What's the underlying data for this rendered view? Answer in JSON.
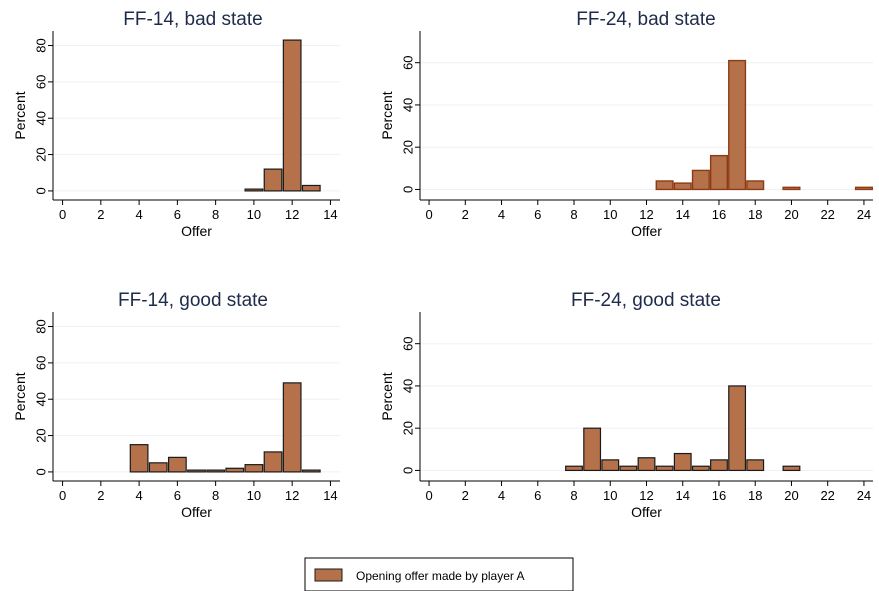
{
  "legend": {
    "label": "Opening offer made by player A"
  },
  "colors": {
    "bar_fill": "#b5714a",
    "bar_stroke_dark": "#1a1a1a",
    "bar_stroke_light": "#8c3b14",
    "gridline": "#eef1f4",
    "title": "#1e2b4a"
  },
  "chart_data": [
    {
      "type": "bar",
      "title": "FF-14, bad state",
      "xlabel": "Offer",
      "ylabel": "Percent",
      "xlim": [
        -0.5,
        14.5
      ],
      "ylim": [
        -5,
        88
      ],
      "xticks": [
        0,
        2,
        4,
        6,
        8,
        10,
        12,
        14
      ],
      "yticks": [
        0,
        20,
        40,
        60,
        80
      ],
      "grid": true,
      "bar_style": "dark",
      "x": [
        10,
        11,
        12,
        13
      ],
      "values": [
        1,
        12,
        83,
        3
      ]
    },
    {
      "type": "bar",
      "title": "FF-24, bad state",
      "xlabel": "Offer",
      "ylabel": "Percent",
      "xlim": [
        -0.5,
        24.5
      ],
      "ylim": [
        -5,
        75
      ],
      "xticks": [
        0,
        2,
        4,
        6,
        8,
        10,
        12,
        14,
        16,
        18,
        20,
        22,
        24
      ],
      "yticks": [
        0,
        20,
        40,
        60
      ],
      "grid": true,
      "bar_style": "light",
      "x": [
        13,
        14,
        15,
        16,
        17,
        18,
        20,
        24
      ],
      "values": [
        4,
        3,
        9,
        16,
        61,
        4,
        1,
        1
      ]
    },
    {
      "type": "bar",
      "title": "FF-14, good state",
      "xlabel": "Offer",
      "ylabel": "Percent",
      "xlim": [
        -0.5,
        14.5
      ],
      "ylim": [
        -5,
        88
      ],
      "xticks": [
        0,
        2,
        4,
        6,
        8,
        10,
        12,
        14
      ],
      "yticks": [
        0,
        20,
        40,
        60,
        80
      ],
      "grid": true,
      "bar_style": "dark",
      "x": [
        4,
        5,
        6,
        7,
        8,
        9,
        10,
        11,
        12,
        13
      ],
      "values": [
        15,
        5,
        8,
        1,
        1,
        2,
        4,
        11,
        49,
        1
      ]
    },
    {
      "type": "bar",
      "title": "FF-24, good state",
      "xlabel": "Offer",
      "ylabel": "Percent",
      "xlim": [
        -0.5,
        24.5
      ],
      "ylim": [
        -5,
        75
      ],
      "xticks": [
        0,
        2,
        4,
        6,
        8,
        10,
        12,
        14,
        16,
        18,
        20,
        22,
        24
      ],
      "yticks": [
        0,
        20,
        40,
        60
      ],
      "grid": true,
      "bar_style": "dark",
      "x": [
        8,
        9,
        10,
        11,
        12,
        13,
        14,
        15,
        16,
        17,
        18,
        20
      ],
      "values": [
        2,
        20,
        5,
        2,
        6,
        2,
        8,
        2,
        5,
        40,
        5,
        2
      ]
    }
  ]
}
